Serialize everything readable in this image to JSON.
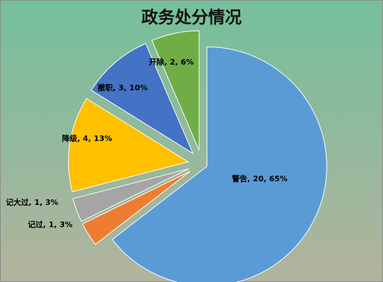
{
  "chart_data": {
    "type": "pie",
    "title": "政务处分情况",
    "categories": [
      "警告",
      "记过",
      "记大过",
      "降级",
      "撤职",
      "开除"
    ],
    "values": [
      20,
      1,
      1,
      4,
      3,
      2
    ],
    "value_labels": [
      "警告, 20, 65%",
      "记过, 1, 3%",
      "记大过, 1, 3%",
      "降级, 4, 13%",
      "撤职, 3, 10%",
      "开除, 2, 6%"
    ],
    "colors": [
      "#5b9bd5",
      "#ed7d31",
      "#a5a5a5",
      "#ffc000",
      "#4472c4",
      "#70ad47"
    ]
  }
}
